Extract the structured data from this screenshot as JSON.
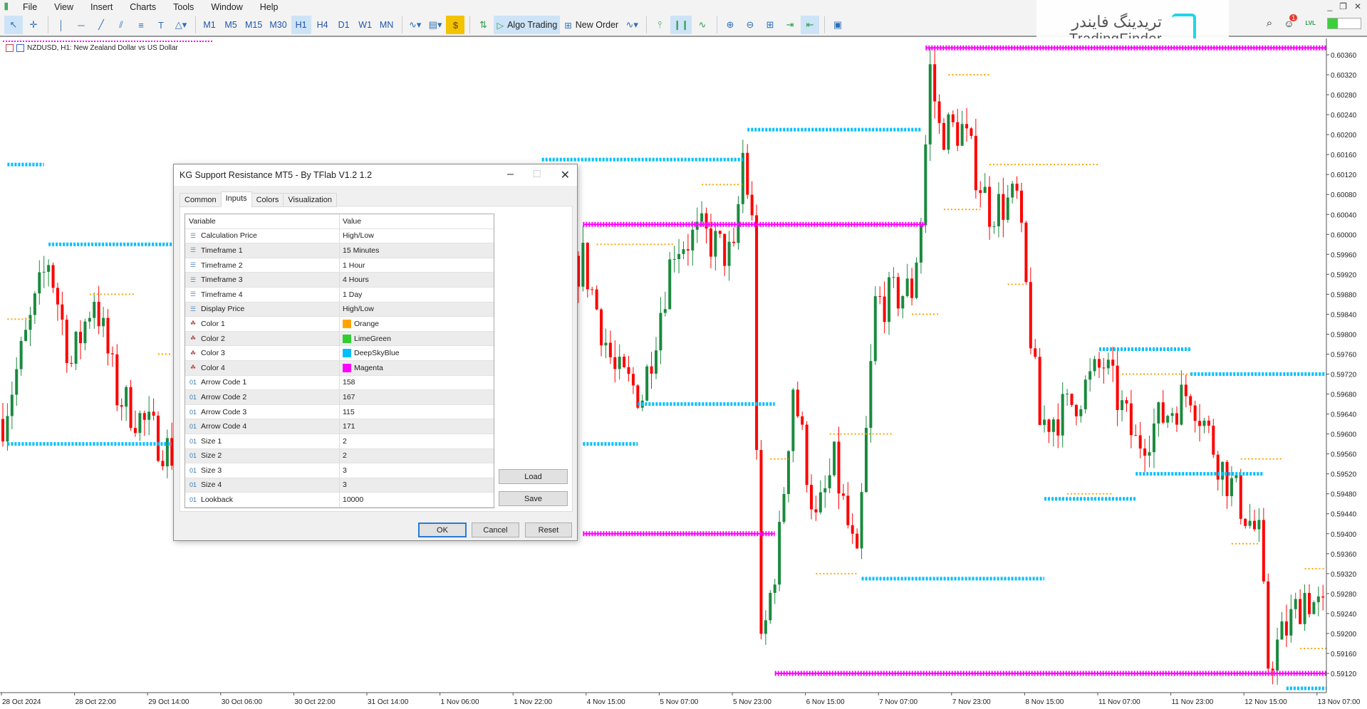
{
  "menu": [
    "File",
    "View",
    "Insert",
    "Charts",
    "Tools",
    "Window",
    "Help"
  ],
  "toolbar": {
    "timeframes": [
      "M1",
      "M5",
      "M15",
      "M30",
      "H1",
      "H4",
      "D1",
      "W1",
      "MN"
    ],
    "active_timeframe": "H1",
    "algo_trading": "Algo Trading",
    "new_order": "New Order"
  },
  "logo": {
    "fa": "تریدینگ فایندر",
    "en": "TradingFinder"
  },
  "notifications": {
    "count": "1"
  },
  "lvl": "LVL",
  "chart": {
    "title": "NZDUSD, H1:  New Zealand Dollar vs US Dollar"
  },
  "chart_data": {
    "type": "candlestick",
    "symbol": "NZDUSD",
    "timeframe": "H1",
    "ylim": [
      0.5908,
      0.604
    ],
    "price_ticks": [
      "0.60360",
      "0.60320",
      "0.60280",
      "0.60240",
      "0.60200",
      "0.60160",
      "0.60120",
      "0.60080",
      "0.60040",
      "0.60000",
      "0.59960",
      "0.59920",
      "0.59880",
      "0.59840",
      "0.59800",
      "0.59760",
      "0.59720",
      "0.59680",
      "0.59640",
      "0.59600",
      "0.59560",
      "0.59520",
      "0.59480",
      "0.59440",
      "0.59400",
      "0.59360",
      "0.59320",
      "0.59280",
      "0.59240",
      "0.59200",
      "0.59160",
      "0.59120"
    ],
    "time_ticks": [
      "28 Oct 2024",
      "28 Oct 22:00",
      "29 Oct 14:00",
      "30 Oct 06:00",
      "30 Oct 22:00",
      "31 Oct 14:00",
      "1 Nov 06:00",
      "1 Nov 22:00",
      "4 Nov 15:00",
      "5 Nov 07:00",
      "5 Nov 23:00",
      "6 Nov 15:00",
      "7 Nov 07:00",
      "7 Nov 23:00",
      "8 Nov 15:00",
      "11 Nov 07:00",
      "11 Nov 23:00",
      "12 Nov 15:00",
      "13 Nov 07:00"
    ],
    "bars_per_tick": 16,
    "price_path": [
      [
        0,
        0.5963
      ],
      [
        10,
        0.5995
      ],
      [
        15,
        0.5974
      ],
      [
        20,
        0.5988
      ],
      [
        25,
        0.5968
      ],
      [
        37,
        0.5956
      ],
      [
        60,
        0.5975
      ],
      [
        82,
        0.5968
      ],
      [
        112,
        0.597
      ],
      [
        127,
        0.5995
      ],
      [
        134,
        0.5972
      ],
      [
        140,
        0.5968
      ],
      [
        147,
        0.5998
      ],
      [
        153,
        0.6
      ],
      [
        160,
        0.5995
      ],
      [
        162,
        0.6016
      ],
      [
        164,
        0.6002
      ],
      [
        166,
        0.5916
      ],
      [
        170,
        0.5939
      ],
      [
        173,
        0.597
      ],
      [
        178,
        0.5942
      ],
      [
        182,
        0.5954
      ],
      [
        187,
        0.5933
      ],
      [
        191,
        0.5986
      ],
      [
        199,
        0.5989
      ],
      [
        201,
        0.6003
      ],
      [
        203,
        0.6033
      ],
      [
        205,
        0.6021
      ],
      [
        210,
        0.6021
      ],
      [
        216,
        0.6005
      ],
      [
        222,
        0.6007
      ],
      [
        227,
        0.5962
      ],
      [
        233,
        0.5965
      ],
      [
        241,
        0.5974
      ],
      [
        248,
        0.5958
      ],
      [
        260,
        0.5969
      ],
      [
        267,
        0.5953
      ],
      [
        275,
        0.5939
      ],
      [
        277,
        0.5914
      ],
      [
        285,
        0.5928
      ],
      [
        290,
        0.5923
      ]
    ],
    "levels": [
      {
        "color": "#ff00ff",
        "price": 0.60374,
        "from": 202,
        "to": 291,
        "style": "heavy"
      },
      {
        "color": "#ff00ff",
        "price": 0.6002,
        "from": 127,
        "to": 202,
        "style": "heavy"
      },
      {
        "color": "#ff00ff",
        "price": 0.594,
        "from": 127,
        "to": 169,
        "style": "heavy"
      },
      {
        "color": "#ff00ff",
        "price": 0.5912,
        "from": 169,
        "to": 291,
        "style": "heavy"
      },
      {
        "color": "#00bfff",
        "price": 0.6014,
        "from": 1,
        "to": 9,
        "style": "dots"
      },
      {
        "color": "#00bfff",
        "price": 0.5998,
        "from": 10,
        "to": 38,
        "style": "dots"
      },
      {
        "color": "#00bfff",
        "price": 0.5958,
        "from": 1,
        "to": 37,
        "style": "dots"
      },
      {
        "color": "#00bfff",
        "price": 0.6015,
        "from": 118,
        "to": 162,
        "style": "dots"
      },
      {
        "color": "#00bfff",
        "price": 0.6021,
        "from": 163,
        "to": 201,
        "style": "dots"
      },
      {
        "color": "#00bfff",
        "price": 0.5966,
        "from": 139,
        "to": 169,
        "style": "dots"
      },
      {
        "color": "#00bfff",
        "price": 0.5958,
        "from": 127,
        "to": 139,
        "style": "dots"
      },
      {
        "color": "#00bfff",
        "price": 0.5931,
        "from": 188,
        "to": 228,
        "style": "dots"
      },
      {
        "color": "#00bfff",
        "price": 0.5947,
        "from": 228,
        "to": 248,
        "style": "dots"
      },
      {
        "color": "#00bfff",
        "price": 0.5977,
        "from": 240,
        "to": 260,
        "style": "dots"
      },
      {
        "color": "#00bfff",
        "price": 0.5972,
        "from": 260,
        "to": 291,
        "style": "dots"
      },
      {
        "color": "#00bfff",
        "price": 0.5952,
        "from": 248,
        "to": 276,
        "style": "dots"
      },
      {
        "color": "#00bfff",
        "price": 0.5909,
        "from": 281,
        "to": 291,
        "style": "dots"
      },
      {
        "color": "#ffa500",
        "price": 0.5988,
        "from": 19,
        "to": 29,
        "style": "small"
      },
      {
        "color": "#ffa500",
        "price": 0.5983,
        "from": 1,
        "to": 6,
        "style": "small"
      },
      {
        "color": "#ffa500",
        "price": 0.5976,
        "from": 34,
        "to": 37,
        "style": "small"
      },
      {
        "color": "#ffa500",
        "price": 0.6032,
        "from": 207,
        "to": 216,
        "style": "small"
      },
      {
        "color": "#ffa500",
        "price": 0.6014,
        "from": 216,
        "to": 240,
        "style": "small"
      },
      {
        "color": "#ffa500",
        "price": 0.5998,
        "from": 130,
        "to": 147,
        "style": "small"
      },
      {
        "color": "#ffa500",
        "price": 0.601,
        "from": 153,
        "to": 162,
        "style": "small"
      },
      {
        "color": "#ffa500",
        "price": 0.5984,
        "from": 199,
        "to": 205,
        "style": "small"
      },
      {
        "color": "#ffa500",
        "price": 0.596,
        "from": 181,
        "to": 195,
        "style": "small"
      },
      {
        "color": "#ffa500",
        "price": 0.5955,
        "from": 168,
        "to": 172,
        "style": "small"
      },
      {
        "color": "#ffa500",
        "price": 0.5932,
        "from": 178,
        "to": 187,
        "style": "small"
      },
      {
        "color": "#ffa500",
        "price": 0.5972,
        "from": 245,
        "to": 260,
        "style": "small"
      },
      {
        "color": "#ffa500",
        "price": 0.5955,
        "from": 271,
        "to": 280,
        "style": "small"
      },
      {
        "color": "#ffa500",
        "price": 0.5933,
        "from": 285,
        "to": 291,
        "style": "small"
      },
      {
        "color": "#ffa500",
        "price": 0.5917,
        "from": 284,
        "to": 291,
        "style": "small"
      },
      {
        "color": "#ffa500",
        "price": 0.5938,
        "from": 269,
        "to": 275,
        "style": "small"
      },
      {
        "color": "#ffa500",
        "price": 0.5948,
        "from": 233,
        "to": 243,
        "style": "small"
      },
      {
        "color": "#ffa500",
        "price": 0.6005,
        "from": 206,
        "to": 214,
        "style": "small"
      },
      {
        "color": "#ffa500",
        "price": 0.599,
        "from": 220,
        "to": 224,
        "style": "small"
      }
    ],
    "colors": {
      "up": "#1a8a3e",
      "down": "#ff0000"
    }
  },
  "dialog": {
    "title": "KG Support Resistance MT5 - By TFlab V1.2 1.2",
    "tabs": [
      "Common",
      "Inputs",
      "Colors",
      "Visualization"
    ],
    "active_tab": "Inputs",
    "columns": [
      "Variable",
      "Value"
    ],
    "rows": [
      {
        "type": "enum",
        "name": "Calculation Price",
        "value": "High/Low"
      },
      {
        "type": "enum",
        "name": "Timeframe 1",
        "value": "15 Minutes"
      },
      {
        "type": "enum",
        "name": "Timeframe 2",
        "value": "1 Hour"
      },
      {
        "type": "enum",
        "name": "Timeframe 3",
        "value": "4 Hours"
      },
      {
        "type": "enum",
        "name": "Timeframe 4",
        "value": "1 Day"
      },
      {
        "type": "enum",
        "name": "Display Price",
        "value": "High/Low"
      },
      {
        "type": "color",
        "name": "Color 1",
        "value": "Orange",
        "swatch": "#ffa500"
      },
      {
        "type": "color",
        "name": "Color 2",
        "value": "LimeGreen",
        "swatch": "#32cd32"
      },
      {
        "type": "color",
        "name": "Color 3",
        "value": "DeepSkyBlue",
        "swatch": "#00bfff"
      },
      {
        "type": "color",
        "name": "Color 4",
        "value": "Magenta",
        "swatch": "#ff00ff"
      },
      {
        "type": "int",
        "name": "Arrow Code 1",
        "value": "158"
      },
      {
        "type": "int",
        "name": "Arrow Code 2",
        "value": "167"
      },
      {
        "type": "int",
        "name": "Arrow Code 3",
        "value": "115"
      },
      {
        "type": "int",
        "name": "Arrow Code 4",
        "value": "171"
      },
      {
        "type": "int",
        "name": "Size 1",
        "value": "2"
      },
      {
        "type": "int",
        "name": "Size 2",
        "value": "2"
      },
      {
        "type": "int",
        "name": "Size 3",
        "value": "3"
      },
      {
        "type": "int",
        "name": "Size 4",
        "value": "3"
      },
      {
        "type": "int",
        "name": "Lookback",
        "value": "10000"
      }
    ],
    "int_icon": "01",
    "buttons": {
      "load": "Load",
      "save": "Save",
      "ok": "OK",
      "cancel": "Cancel",
      "reset": "Reset"
    }
  }
}
